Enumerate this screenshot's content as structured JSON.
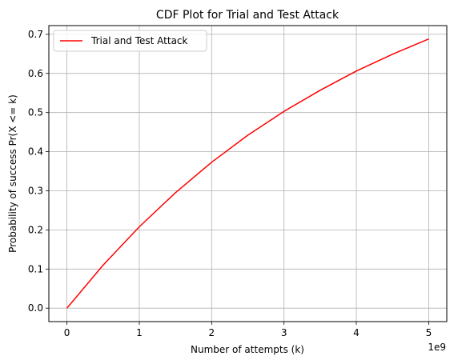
{
  "chart_data": {
    "type": "line",
    "title": "CDF Plot for Trial and Test Attack",
    "xlabel": "Number of attempts (k)",
    "ylabel": "Probability of success Pr(X <= k)",
    "x_offset_label": "1e9",
    "xlim": [
      -0.25,
      5.25
    ],
    "ylim": [
      -0.0344,
      0.7222
    ],
    "x_ticks": [
      0,
      1,
      2,
      3,
      4,
      5
    ],
    "x_tick_labels": [
      "0",
      "1",
      "2",
      "3",
      "4",
      "5"
    ],
    "y_ticks": [
      0.0,
      0.1,
      0.2,
      0.3,
      0.4,
      0.5,
      0.6,
      0.7
    ],
    "y_tick_labels": [
      "0.0",
      "0.1",
      "0.2",
      "0.3",
      "0.4",
      "0.5",
      "0.6",
      "0.7"
    ],
    "grid": true,
    "legend_position": "upper-left",
    "series": [
      {
        "name": "Trial and Test Attack",
        "color": "#ff0000",
        "x": [
          0,
          0.5,
          1,
          1.5,
          2,
          2.5,
          3,
          3.5,
          4,
          4.5,
          5
        ],
        "y": [
          0.0,
          0.11,
          0.208,
          0.295,
          0.373,
          0.442,
          0.503,
          0.557,
          0.606,
          0.649,
          0.688
        ]
      }
    ]
  }
}
